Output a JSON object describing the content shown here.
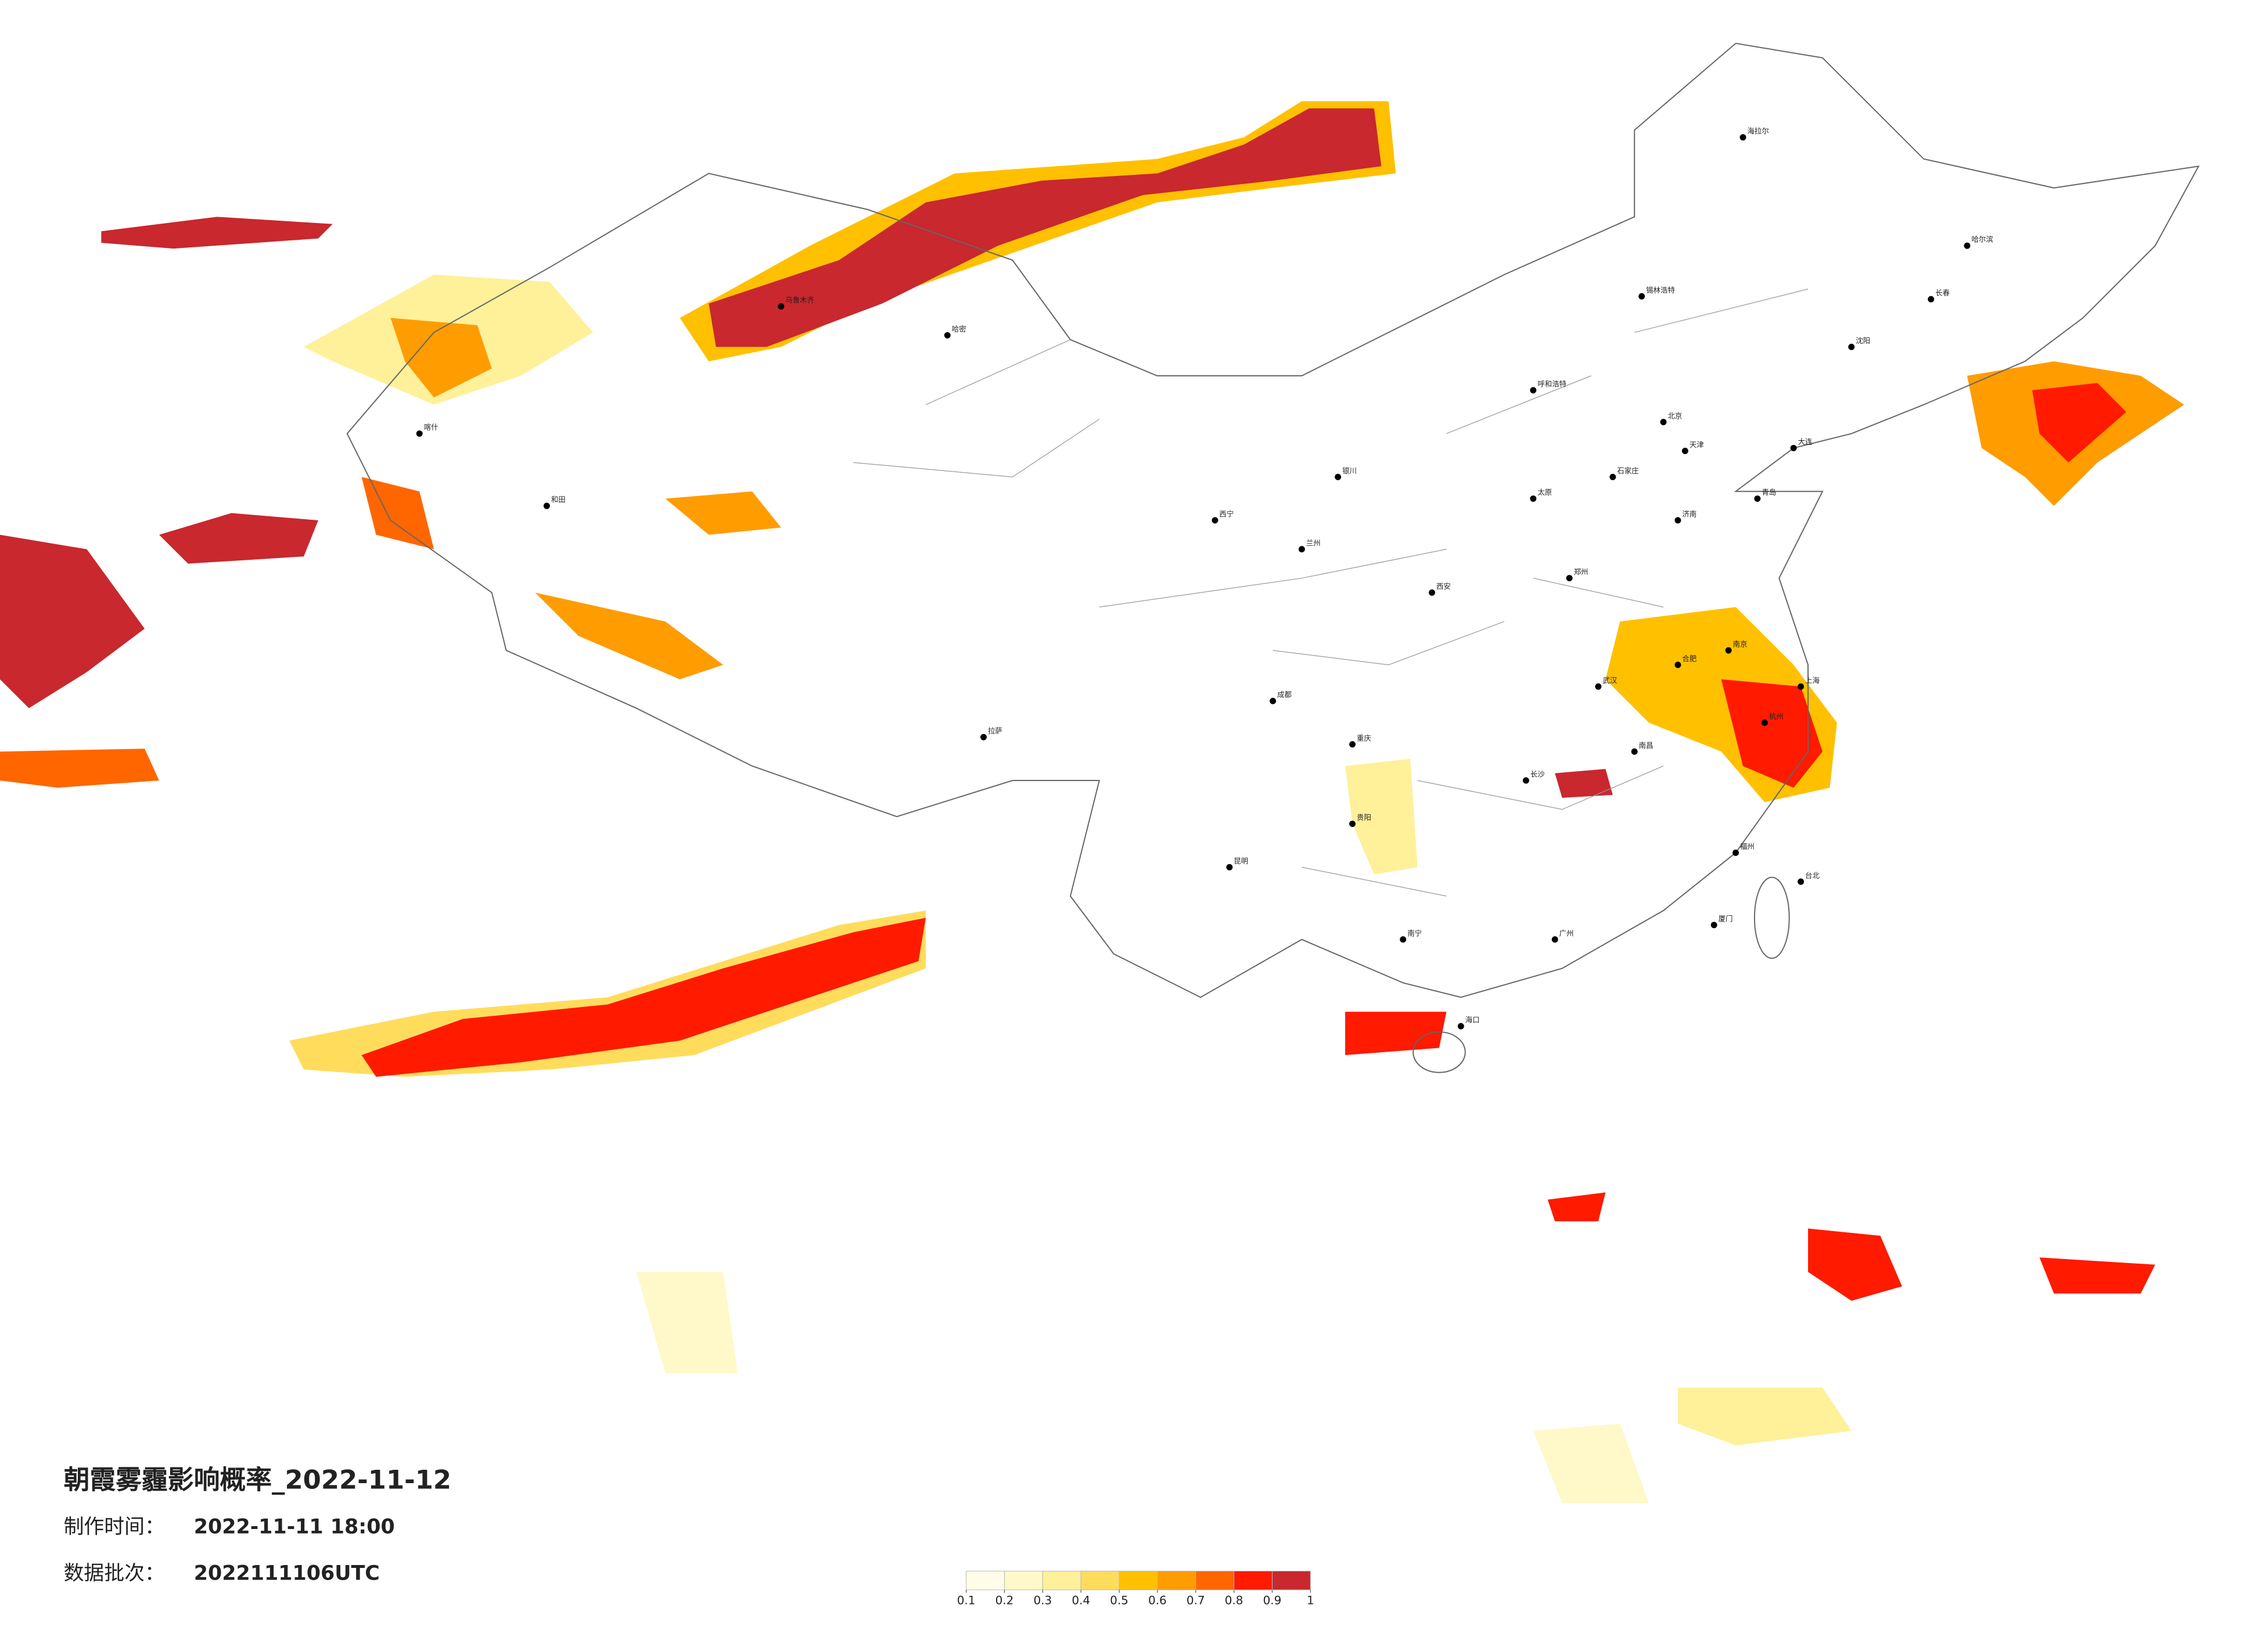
{
  "title": "朝霞雾霾影响概率_2022-11-12",
  "production_time": {
    "label": "制作时间：",
    "value": "2022-11-11 18:00"
  },
  "batch": {
    "label": "数据批次：",
    "value": "2022111106UTC"
  },
  "legend": {
    "ticks": [
      0.1,
      0.2,
      0.3,
      0.4,
      0.5,
      0.6,
      0.7,
      0.8,
      0.9,
      1
    ],
    "colors": [
      "#fffde8",
      "#fff8c8",
      "#fff09a",
      "#ffdc5c",
      "#ffc000",
      "#ff9c00",
      "#ff6600",
      "#ff1a00",
      "#c8282e"
    ]
  },
  "cities": [
    "北京",
    "天津",
    "石家庄",
    "太原",
    "呼和浩特",
    "沈阳",
    "长春",
    "哈尔滨",
    "济南",
    "郑州",
    "西安",
    "兰州",
    "西宁",
    "银川",
    "成都",
    "重庆",
    "贵阳",
    "昆明",
    "南宁",
    "广州",
    "长沙",
    "武汉",
    "南昌",
    "合肥",
    "南京",
    "上海",
    "杭州",
    "福州",
    "台北",
    "海口",
    "拉萨",
    "乌鲁木齐",
    "哈密",
    "和田",
    "喀什",
    "锡林浩特",
    "海拉尔",
    "大连",
    "青岛",
    "厦门"
  ]
}
